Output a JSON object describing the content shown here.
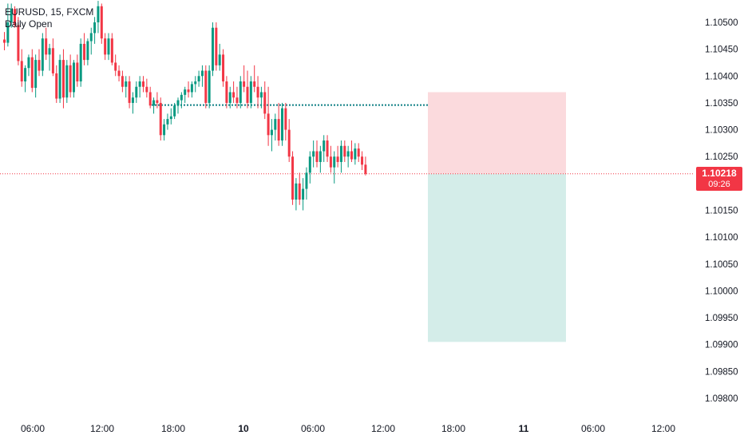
{
  "symbol_line": "EURUSD, 15, FXCM",
  "indicator_line": "Daily Open",
  "last_price": {
    "price": "1.10218",
    "countdown": "09:26"
  },
  "colors": {
    "up": "#089981",
    "down": "#f23645",
    "daily_open": "#0e7f84",
    "last_price_line": "#f23645",
    "stop_zone": "#fbdadd",
    "target_zone": "#d4ede9",
    "axis_text": "#131722"
  },
  "chart_data": {
    "type": "candlestick",
    "title": "EURUSD, 15, FXCM",
    "y_ticks": [
      "1.10500",
      "1.10450",
      "1.10400",
      "1.10350",
      "1.10300",
      "1.10250",
      "1.10150",
      "1.10100",
      "1.10050",
      "1.10000",
      "1.09950",
      "1.09900",
      "1.09850",
      "1.09800"
    ],
    "x_ticks": [
      "06:00",
      "12:00",
      "18:00",
      "10",
      "06:00",
      "12:00",
      "18:00",
      "11",
      "06:00",
      "12:00"
    ],
    "ylim": [
      1.09785,
      1.10545
    ],
    "daily_open_level": 1.10346,
    "last_price": 1.10218,
    "position": {
      "entry": 1.10218,
      "stop": 1.1037,
      "target": 1.09905
    },
    "grid": false,
    "candles_ohlc": [
      [
        1.10468,
        1.10482,
        1.10448,
        1.10462
      ],
      [
        1.10462,
        1.10535,
        1.10455,
        1.105
      ],
      [
        1.105,
        1.10535,
        1.1049,
        1.10525
      ],
      [
        1.10525,
        1.1053,
        1.1049,
        1.10495
      ],
      [
        1.10495,
        1.1051,
        1.1042,
        1.10428
      ],
      [
        1.10428,
        1.1045,
        1.1038,
        1.1039
      ],
      [
        1.1039,
        1.1042,
        1.1037,
        1.10415
      ],
      [
        1.10415,
        1.1044,
        1.104,
        1.10435
      ],
      [
        1.10435,
        1.1045,
        1.1037,
        1.10378
      ],
      [
        1.10378,
        1.1044,
        1.1036,
        1.1043
      ],
      [
        1.1043,
        1.1045,
        1.104,
        1.1041
      ],
      [
        1.1041,
        1.1048,
        1.104,
        1.1047
      ],
      [
        1.1047,
        1.1049,
        1.1043,
        1.1044
      ],
      [
        1.1044,
        1.1046,
        1.1041,
        1.10452
      ],
      [
        1.10452,
        1.1047,
        1.104,
        1.10405
      ],
      [
        1.10405,
        1.1042,
        1.1035,
        1.10358
      ],
      [
        1.10358,
        1.1044,
        1.1035,
        1.1043
      ],
      [
        1.1043,
        1.1045,
        1.1034,
        1.1036
      ],
      [
        1.1036,
        1.1043,
        1.1035,
        1.1042
      ],
      [
        1.1042,
        1.1044,
        1.1036,
        1.1037
      ],
      [
        1.1037,
        1.1043,
        1.1036,
        1.10425
      ],
      [
        1.10425,
        1.1044,
        1.1038,
        1.1039
      ],
      [
        1.1039,
        1.1047,
        1.1038,
        1.1046
      ],
      [
        1.1046,
        1.1048,
        1.1042,
        1.1043
      ],
      [
        1.1043,
        1.1047,
        1.1042,
        1.10465
      ],
      [
        1.10465,
        1.1049,
        1.1044,
        1.1048
      ],
      [
        1.1048,
        1.1051,
        1.1046,
        1.105
      ],
      [
        1.105,
        1.1054,
        1.1048,
        1.1053
      ],
      [
        1.1053,
        1.10535,
        1.1046,
        1.1047
      ],
      [
        1.1047,
        1.1048,
        1.1043,
        1.1044
      ],
      [
        1.1044,
        1.1048,
        1.1043,
        1.1047
      ],
      [
        1.1047,
        1.1048,
        1.1042,
        1.10425
      ],
      [
        1.10425,
        1.1044,
        1.104,
        1.1041
      ],
      [
        1.1041,
        1.1042,
        1.1039,
        1.104
      ],
      [
        1.104,
        1.1041,
        1.1037,
        1.1038
      ],
      [
        1.1038,
        1.104,
        1.1036,
        1.1039
      ],
      [
        1.1039,
        1.104,
        1.1034,
        1.1035
      ],
      [
        1.1035,
        1.1037,
        1.1033,
        1.1036
      ],
      [
        1.1036,
        1.1039,
        1.1035,
        1.1038
      ],
      [
        1.1038,
        1.104,
        1.1036,
        1.1039
      ],
      [
        1.1039,
        1.104,
        1.1037,
        1.1038
      ],
      [
        1.1038,
        1.10395,
        1.1036,
        1.1037
      ],
      [
        1.1037,
        1.1038,
        1.1034,
        1.10345
      ],
      [
        1.10345,
        1.1036,
        1.1033,
        1.10355
      ],
      [
        1.10355,
        1.1037,
        1.1034,
        1.1035
      ],
      [
        1.1035,
        1.1036,
        1.1028,
        1.1029
      ],
      [
        1.1029,
        1.1032,
        1.1028,
        1.1031
      ],
      [
        1.1031,
        1.1033,
        1.103,
        1.1032
      ],
      [
        1.1032,
        1.1034,
        1.1031,
        1.10325
      ],
      [
        1.10325,
        1.1035,
        1.1032,
        1.10345
      ],
      [
        1.10345,
        1.1036,
        1.1033,
        1.10355
      ],
      [
        1.10355,
        1.1037,
        1.1034,
        1.10365
      ],
      [
        1.10365,
        1.1038,
        1.1035,
        1.10375
      ],
      [
        1.10375,
        1.1039,
        1.1036,
        1.1037
      ],
      [
        1.1037,
        1.1039,
        1.1036,
        1.10385
      ],
      [
        1.10385,
        1.104,
        1.1037,
        1.1039
      ],
      [
        1.1039,
        1.1041,
        1.1038,
        1.104
      ],
      [
        1.104,
        1.1042,
        1.1038,
        1.1041
      ],
      [
        1.1041,
        1.1042,
        1.1034,
        1.1035
      ],
      [
        1.1035,
        1.1042,
        1.1034,
        1.1041
      ],
      [
        1.1041,
        1.105,
        1.104,
        1.1049
      ],
      [
        1.1049,
        1.105,
        1.1041,
        1.1042
      ],
      [
        1.1042,
        1.1046,
        1.1041,
        1.1044
      ],
      [
        1.1044,
        1.1045,
        1.1038,
        1.1039
      ],
      [
        1.1039,
        1.104,
        1.1034,
        1.1035
      ],
      [
        1.1035,
        1.1038,
        1.1034,
        1.1037
      ],
      [
        1.1037,
        1.1039,
        1.1035,
        1.1036
      ],
      [
        1.1036,
        1.1038,
        1.1034,
        1.1035
      ],
      [
        1.1035,
        1.104,
        1.1034,
        1.1039
      ],
      [
        1.1039,
        1.1042,
        1.1037,
        1.1038
      ],
      [
        1.1038,
        1.1041,
        1.1034,
        1.1035
      ],
      [
        1.1035,
        1.104,
        1.1034,
        1.1039
      ],
      [
        1.1039,
        1.1042,
        1.1037,
        1.1038
      ],
      [
        1.1038,
        1.104,
        1.1034,
        1.1036
      ],
      [
        1.1036,
        1.1038,
        1.1034,
        1.1037
      ],
      [
        1.1037,
        1.1039,
        1.1032,
        1.1033
      ],
      [
        1.1033,
        1.1038,
        1.1027,
        1.1029
      ],
      [
        1.1029,
        1.1032,
        1.1026,
        1.103
      ],
      [
        1.103,
        1.1033,
        1.1028,
        1.1032
      ],
      [
        1.1032,
        1.1035,
        1.1027,
        1.1028
      ],
      [
        1.1028,
        1.1035,
        1.1027,
        1.1034
      ],
      [
        1.1034,
        1.1035,
        1.1028,
        1.103
      ],
      [
        1.103,
        1.1032,
        1.1024,
        1.1025
      ],
      [
        1.1025,
        1.1026,
        1.1016,
        1.1017
      ],
      [
        1.1017,
        1.1021,
        1.1015,
        1.102
      ],
      [
        1.102,
        1.1022,
        1.1016,
        1.1017
      ],
      [
        1.1017,
        1.1021,
        1.1015,
        1.1019
      ],
      [
        1.1019,
        1.1023,
        1.1017,
        1.1022
      ],
      [
        1.1022,
        1.1026,
        1.102,
        1.1025
      ],
      [
        1.1025,
        1.1028,
        1.1023,
        1.1026
      ],
      [
        1.1026,
        1.1028,
        1.1023,
        1.1024
      ],
      [
        1.1024,
        1.1027,
        1.1022,
        1.1026
      ],
      [
        1.1026,
        1.1029,
        1.1024,
        1.1028
      ],
      [
        1.1028,
        1.1029,
        1.1024,
        1.1025
      ],
      [
        1.1025,
        1.1027,
        1.1022,
        1.1023
      ],
      [
        1.1023,
        1.1026,
        1.102,
        1.1025
      ],
      [
        1.1025,
        1.1027,
        1.1023,
        1.1024
      ],
      [
        1.1024,
        1.1028,
        1.1022,
        1.1027
      ],
      [
        1.1027,
        1.1028,
        1.1024,
        1.1025
      ],
      [
        1.1025,
        1.1027,
        1.1023,
        1.1026
      ],
      [
        1.1026,
        1.1028,
        1.1024,
        1.10245
      ],
      [
        1.10245,
        1.10275,
        1.10235,
        1.10265
      ],
      [
        1.10265,
        1.10275,
        1.1024,
        1.1025
      ],
      [
        1.1025,
        1.1026,
        1.10225,
        1.10235
      ],
      [
        1.10235,
        1.1025,
        1.10215,
        1.10218
      ]
    ]
  }
}
